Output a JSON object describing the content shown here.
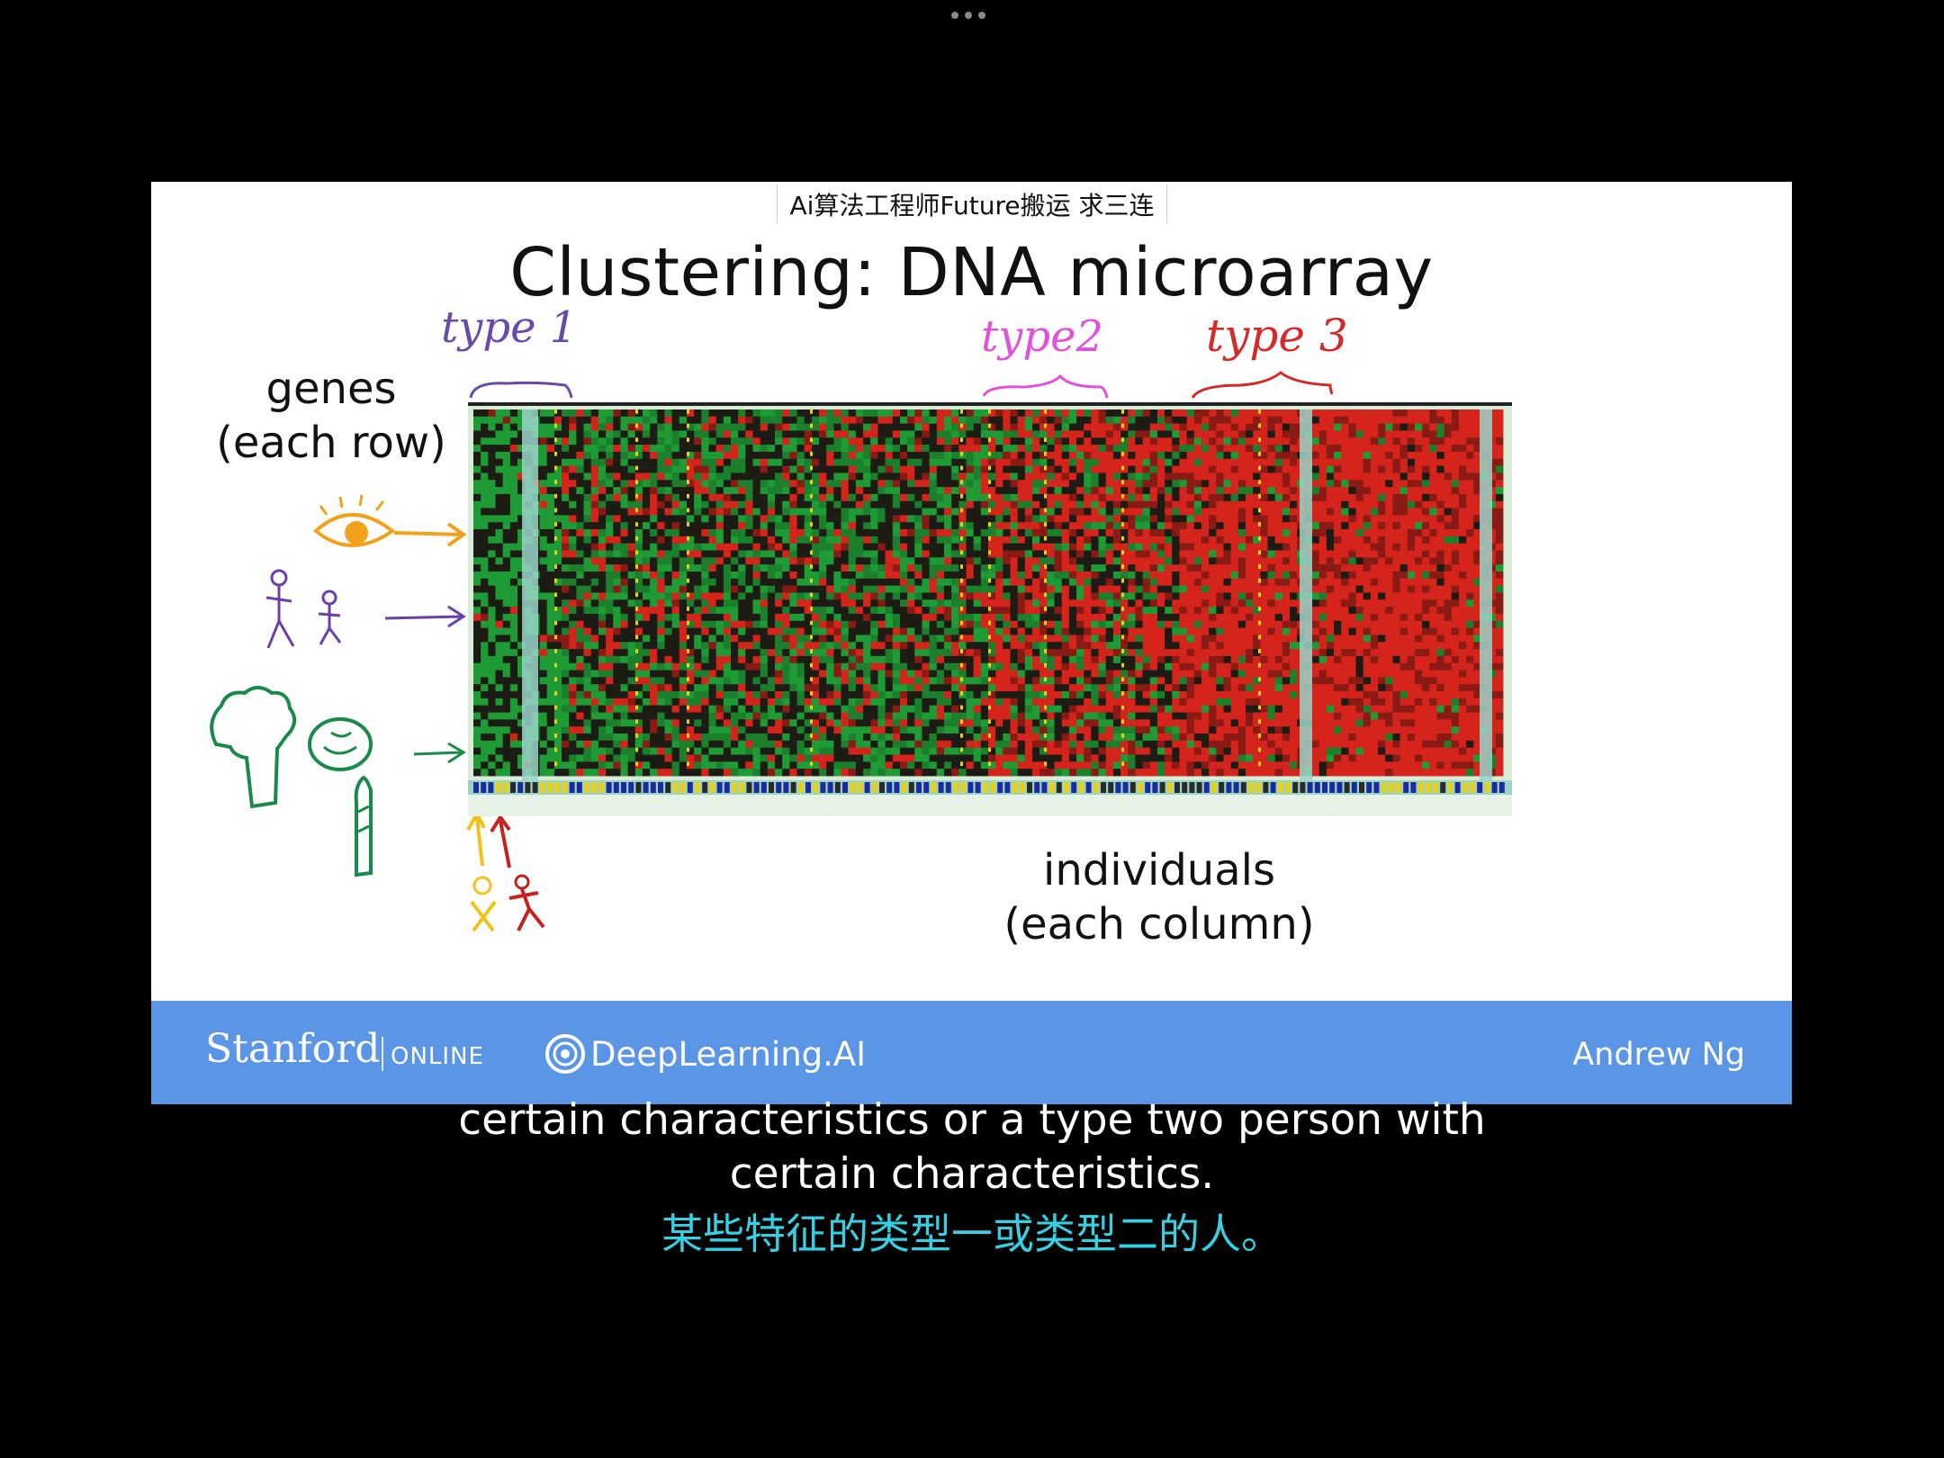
{
  "player": {
    "watermark": "Ai算法工程师Future搬运 求三连"
  },
  "slide": {
    "title": "Clustering: DNA microarray",
    "genes_label_line1": "genes",
    "genes_label_line2": "(each row)",
    "individuals_label_line1": "individuals",
    "individuals_label_line2": "(each column)",
    "annotations": {
      "type1": "type 1",
      "type2": "type2",
      "type3": "type 3"
    },
    "colors": {
      "heat_green": "#1f9b36",
      "heat_red": "#d4241b",
      "heat_dark": "#1c1c14",
      "type1_ink": "#6a4aa8",
      "type2_ink": "#e052d8",
      "type3_ink": "#d42a2a",
      "eye_ink": "#f2a11b",
      "person_ink": "#6a3fa8",
      "veg_ink": "#1a8a4a"
    }
  },
  "footer": {
    "stanford": "Stanford",
    "online": "ONLINE",
    "deeplearning": "DeepLearning.AI",
    "author": "Andrew Ng",
    "bar_color": "#5b96e6"
  },
  "subtitles": {
    "english_line1": "certain characteristics or a type two person with",
    "english_line2": "certain characteristics.",
    "chinese": "某些特征的类型一或类型二的人。"
  },
  "icons": [
    "more-dots-icon",
    "eye-icon",
    "people-icon",
    "broccoli-icon",
    "cabbage-icon",
    "asparagus-icon",
    "deeplearning-logo-icon"
  ]
}
